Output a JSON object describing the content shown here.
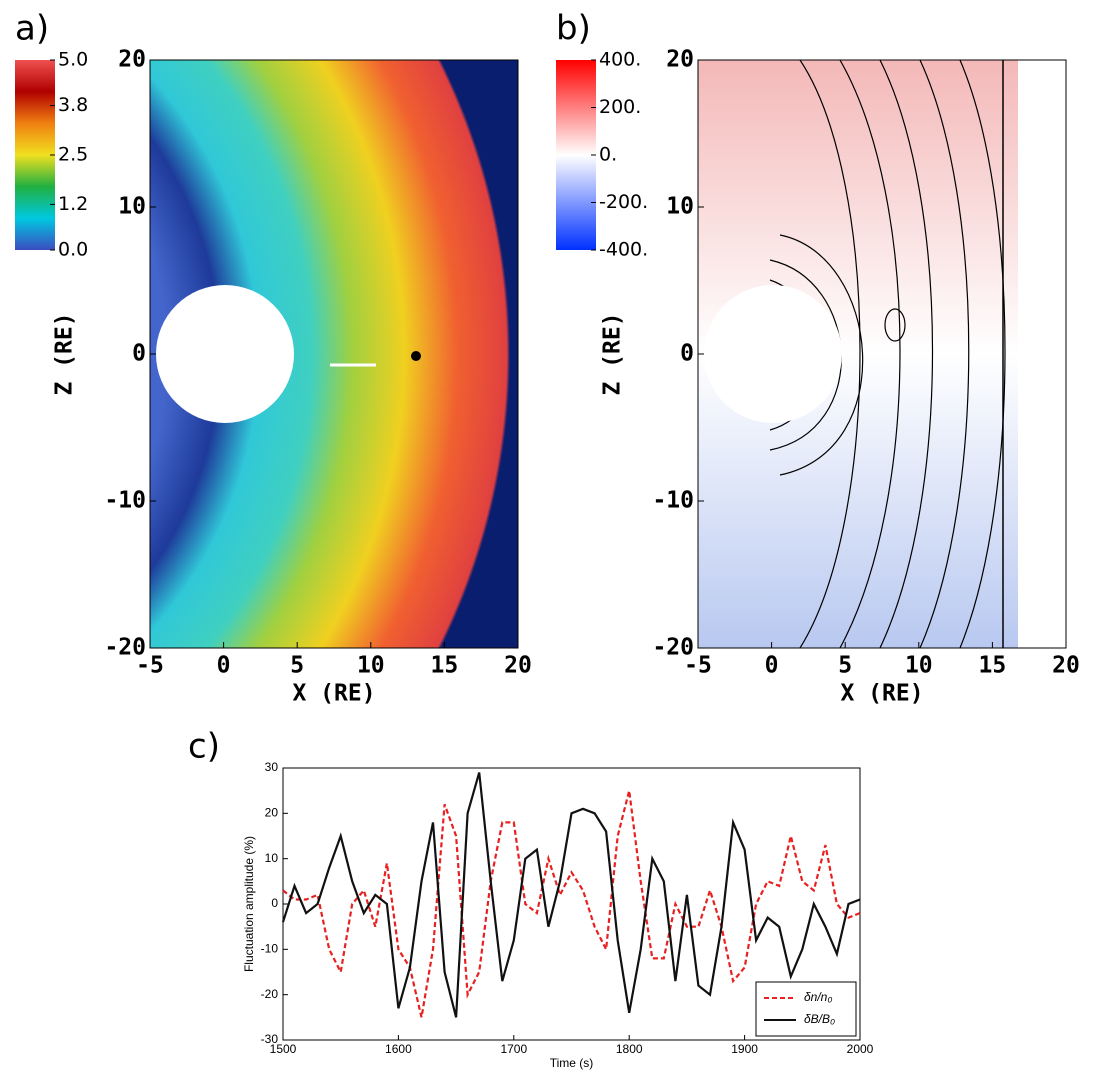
{
  "chart_data": [
    {
      "type": "image",
      "panel_label": "a)",
      "xlabel": "X (RE)",
      "ylabel": "Z (RE)",
      "xlim": [
        -5,
        20
      ],
      "ylim": [
        -20,
        20
      ],
      "xticks": [
        -5,
        0,
        5,
        10,
        15,
        20
      ],
      "yticks": [
        -20,
        -10,
        0,
        10,
        20
      ],
      "colorbar": {
        "lim": [
          0,
          5
        ],
        "ticks": [
          {
            "value": 5,
            "label": "5.0"
          },
          {
            "value": 3.8,
            "label": "3.8"
          },
          {
            "value": 2.5,
            "label": "2.5"
          },
          {
            "value": 1.2,
            "label": "1.2"
          },
          {
            "value": 0,
            "label": "0.0"
          }
        ],
        "colors": [
          "#3b4cc0",
          "#00c8e0",
          "#20b040",
          "#f0e020",
          "#f08010",
          "#b00000",
          "#f05050"
        ]
      }
    },
    {
      "type": "image",
      "panel_label": "b)",
      "xlabel": "X (RE)",
      "ylabel": "Z (RE)",
      "xlim": [
        -5,
        20
      ],
      "ylim": [
        -20,
        20
      ],
      "xticks": [
        -5,
        0,
        5,
        10,
        15,
        20
      ],
      "yticks": [
        -20,
        -10,
        0,
        10,
        20
      ],
      "colorbar": {
        "lim": [
          -400,
          400
        ],
        "ticks": [
          {
            "value": 400,
            "label": "400."
          },
          {
            "value": 200,
            "label": "200."
          },
          {
            "value": 0,
            "label": "0."
          },
          {
            "value": -200,
            "label": "-200."
          },
          {
            "value": -400,
            "label": "-400."
          }
        ],
        "colors": [
          "#0030ff",
          "#ffffff",
          "#ff0000"
        ]
      }
    },
    {
      "type": "line",
      "panel_label": "c)",
      "xlabel": "Time (s)",
      "ylabel": "Fluctuation amplitude (%)",
      "xlim": [
        1500,
        2000
      ],
      "ylim": [
        -30,
        30
      ],
      "xticks": [
        1500,
        1600,
        1700,
        1800,
        1900,
        2000
      ],
      "yticks": [
        -30,
        -20,
        -10,
        0,
        10,
        20,
        30
      ],
      "legend": "lower right",
      "x": [
        1500,
        1510,
        1520,
        1530,
        1540,
        1550,
        1560,
        1570,
        1580,
        1590,
        1600,
        1610,
        1620,
        1630,
        1640,
        1650,
        1660,
        1670,
        1680,
        1690,
        1700,
        1710,
        1720,
        1730,
        1740,
        1750,
        1760,
        1770,
        1780,
        1790,
        1800,
        1810,
        1820,
        1830,
        1840,
        1850,
        1860,
        1870,
        1880,
        1890,
        1900,
        1910,
        1920,
        1930,
        1940,
        1950,
        1960,
        1970,
        1980,
        1990,
        2000
      ],
      "series": [
        {
          "name": "δn/n₀",
          "color": "#e82020",
          "dash": true,
          "values": [
            3,
            1,
            1,
            2,
            -10,
            -15,
            0,
            3,
            -5,
            9,
            -10,
            -14,
            -25,
            -10,
            22,
            15,
            -20,
            -15,
            5,
            18,
            18,
            0,
            -2,
            10,
            2,
            7,
            3,
            -5,
            -10,
            15,
            25,
            5,
            -12,
            -12,
            0,
            -5,
            -5,
            3,
            -5,
            -17,
            -14,
            0,
            5,
            4,
            15,
            5,
            3,
            13,
            0,
            -3,
            -2
          ]
        },
        {
          "name": "δB/B₀",
          "color": "#111111",
          "dash": false,
          "values": [
            -4,
            4,
            -2,
            0,
            8,
            15,
            5,
            -2,
            2,
            0,
            -23,
            -14,
            5,
            18,
            -15,
            -25,
            20,
            29,
            5,
            -17,
            -8,
            10,
            12,
            -5,
            5,
            20,
            21,
            20,
            16,
            -8,
            -24,
            -10,
            10,
            5,
            -17,
            2,
            -18,
            -20,
            -5,
            18,
            12,
            -8,
            -3,
            -5,
            -16,
            -10,
            0,
            -5,
            -11,
            0,
            1
          ]
        }
      ]
    }
  ]
}
